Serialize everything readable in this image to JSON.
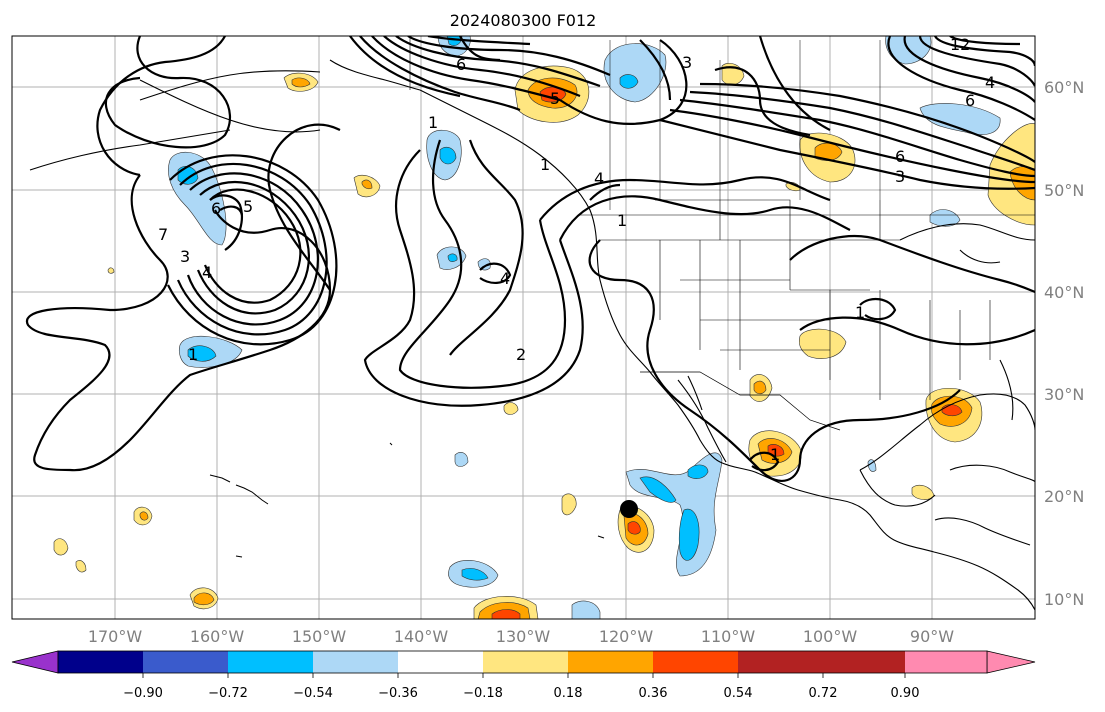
{
  "map": {
    "title": "2024080300 F012",
    "lon_labels": [
      "170°W",
      "160°W",
      "150°W",
      "140°W",
      "130°W",
      "120°W",
      "110°W",
      "100°W",
      "90°W"
    ],
    "lat_labels": [
      "60°N",
      "50°N",
      "40°N",
      "30°N",
      "20°N",
      "10°N"
    ],
    "contour_labels": [
      {
        "text": "1"
      },
      {
        "text": "2"
      },
      {
        "text": "3"
      },
      {
        "text": "4"
      },
      {
        "text": "5"
      },
      {
        "text": "6"
      },
      {
        "text": "7"
      },
      {
        "text": "1"
      },
      {
        "text": "6"
      },
      {
        "text": "3"
      },
      {
        "text": "5"
      },
      {
        "text": "6"
      },
      {
        "text": "4"
      },
      {
        "text": "4"
      },
      {
        "text": "1"
      },
      {
        "text": "1"
      },
      {
        "text": "1"
      },
      {
        "text": "3"
      },
      {
        "text": "12"
      },
      {
        "text": "4"
      },
      {
        "text": "6"
      },
      {
        "text": "1"
      }
    ]
  },
  "colorbar": {
    "colors": [
      "#9932cc",
      "#00008b",
      "#3a5bcc",
      "#00bfff",
      "#add8f6",
      "#ffffff",
      "#ffe680",
      "#ffa500",
      "#ff4500",
      "#b22222",
      "#ff8ab0"
    ],
    "tick_labels": [
      "−0.90",
      "−0.72",
      "−0.54",
      "−0.36",
      "−0.18",
      "0.18",
      "0.36",
      "0.54",
      "0.72",
      "0.90"
    ]
  }
}
